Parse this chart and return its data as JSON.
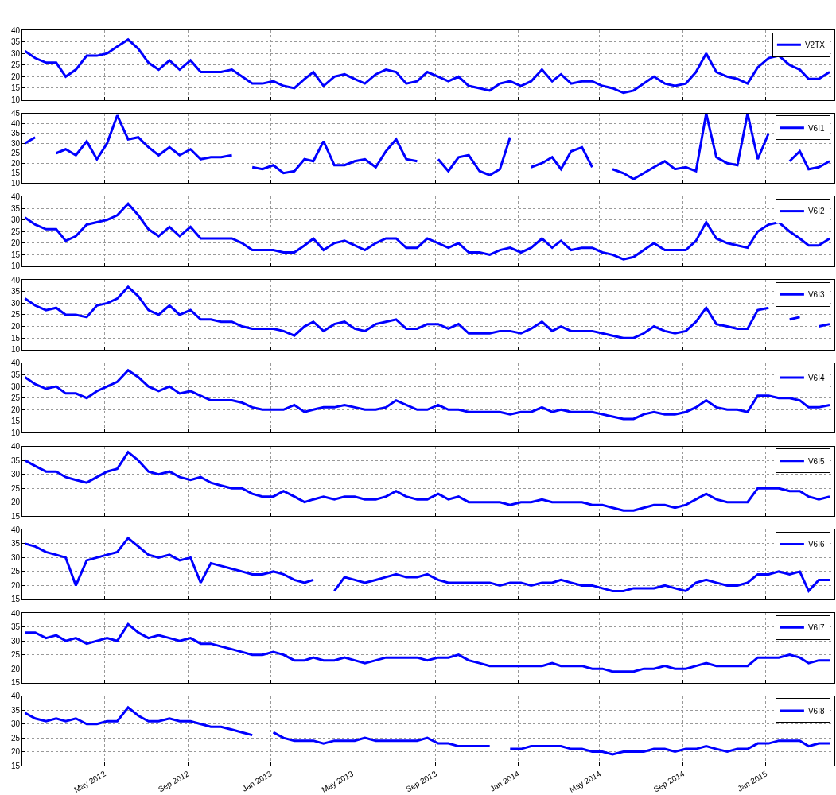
{
  "chart_data": [
    {
      "type": "line",
      "x": [
        "2012-01-05",
        "2012-01-20",
        "2012-02-05",
        "2012-02-20",
        "2012-03-05",
        "2012-03-20",
        "2012-04-05",
        "2012-04-20",
        "2012-05-05",
        "2012-05-20",
        "2012-06-05",
        "2012-06-20",
        "2012-07-05",
        "2012-07-20",
        "2012-08-05",
        "2012-08-20",
        "2012-09-05",
        "2012-09-20",
        "2012-10-05",
        "2012-10-20",
        "2012-11-05",
        "2012-11-20",
        "2012-12-05",
        "2012-12-20",
        "2013-01-05",
        "2013-01-20",
        "2013-02-05",
        "2013-02-20",
        "2013-03-05",
        "2013-03-20",
        "2013-04-05",
        "2013-04-20",
        "2013-05-05",
        "2013-05-20",
        "2013-06-05",
        "2013-06-20",
        "2013-07-05",
        "2013-07-20",
        "2013-08-05",
        "2013-08-20",
        "2013-09-05",
        "2013-09-20",
        "2013-10-05",
        "2013-10-20",
        "2013-11-05",
        "2013-11-20",
        "2013-12-05",
        "2013-12-20",
        "2014-01-05",
        "2014-01-20",
        "2014-02-05",
        "2014-02-20",
        "2014-03-05",
        "2014-03-20",
        "2014-04-05",
        "2014-04-20",
        "2014-05-05",
        "2014-05-20",
        "2014-06-05",
        "2014-06-20",
        "2014-07-05",
        "2014-07-20",
        "2014-08-05",
        "2014-08-20",
        "2014-09-05",
        "2014-09-20",
        "2014-10-05",
        "2014-10-20",
        "2014-11-05",
        "2014-11-20",
        "2014-12-05",
        "2014-12-20",
        "2015-01-05",
        "2015-01-20",
        "2015-02-05",
        "2015-02-20",
        "2015-03-05",
        "2015-03-20",
        "2015-04-05"
      ],
      "series": [
        {
          "name": "V2TX",
          "color": "#0000ff",
          "values": [
            31,
            28,
            26,
            26,
            20,
            23,
            29,
            29,
            30,
            33,
            36,
            32,
            26,
            23,
            27,
            23,
            27,
            22,
            22,
            22,
            23,
            20,
            17,
            17,
            18,
            16,
            15,
            19,
            22,
            16,
            20,
            21,
            19,
            17,
            21,
            23,
            22,
            17,
            18,
            22,
            20,
            18,
            20,
            16,
            15,
            14,
            17,
            18,
            16,
            18,
            23,
            18,
            21,
            17,
            18,
            18,
            16,
            15,
            13,
            14,
            17,
            20,
            17,
            16,
            17,
            22,
            30,
            22,
            20,
            19,
            17,
            24,
            28,
            29,
            25,
            23,
            19,
            19,
            22
          ]
        }
      ],
      "xlim": [
        "2012-01-01",
        "2015-04-12"
      ],
      "xticks": [
        {
          "value": "2012-05-01",
          "label": null
        },
        {
          "value": "2012-09-01",
          "label": null
        },
        {
          "value": "2013-01-01",
          "label": null
        },
        {
          "value": "2013-05-01",
          "label": null
        },
        {
          "value": "2013-09-01",
          "label": null
        },
        {
          "value": "2014-01-01",
          "label": null
        },
        {
          "value": "2014-05-01",
          "label": null
        },
        {
          "value": "2014-09-01",
          "label": null
        },
        {
          "value": "2015-01-01",
          "label": null
        }
      ],
      "ylim": [
        10,
        40
      ],
      "yticks": [
        10,
        15,
        20,
        25,
        30,
        35,
        40
      ],
      "grid": true,
      "legend": "top right",
      "tick_labels": "y",
      "line_style": "solid"
    },
    {
      "type": "line",
      "x": [
        "2012-01-05",
        "2012-01-20",
        "2012-02-05",
        "2012-02-20",
        "2012-03-05",
        "2012-03-20",
        "2012-04-05",
        "2012-04-20",
        "2012-05-05",
        "2012-05-20",
        "2012-06-05",
        "2012-06-20",
        "2012-07-05",
        "2012-07-20",
        "2012-08-05",
        "2012-08-20",
        "2012-09-05",
        "2012-09-20",
        "2012-10-05",
        "2012-10-20",
        "2012-11-05",
        "2012-11-20",
        "2012-12-05",
        "2012-12-20",
        "2013-01-05",
        "2013-01-20",
        "2013-02-05",
        "2013-02-20",
        "2013-03-05",
        "2013-03-20",
        "2013-04-05",
        "2013-04-20",
        "2013-05-05",
        "2013-05-20",
        "2013-06-05",
        "2013-06-20",
        "2013-07-05",
        "2013-07-20",
        "2013-08-05",
        "2013-08-20",
        "2013-09-05",
        "2013-09-20",
        "2013-10-05",
        "2013-10-20",
        "2013-11-05",
        "2013-11-20",
        "2013-12-05",
        "2013-12-20",
        "2014-01-05",
        "2014-01-20",
        "2014-02-05",
        "2014-02-20",
        "2014-03-05",
        "2014-03-20",
        "2014-04-05",
        "2014-04-20",
        "2014-05-05",
        "2014-05-20",
        "2014-06-05",
        "2014-06-20",
        "2014-07-05",
        "2014-07-20",
        "2014-08-05",
        "2014-08-20",
        "2014-09-05",
        "2014-09-20",
        "2014-10-05",
        "2014-10-20",
        "2014-11-05",
        "2014-11-20",
        "2014-12-05",
        "2014-12-20",
        "2015-01-05",
        "2015-01-20",
        "2015-02-05",
        "2015-02-20",
        "2015-03-05",
        "2015-03-20",
        "2015-04-05"
      ],
      "series": [
        {
          "name": "V6I1",
          "color": "#0000ff",
          "values": [
            30,
            33,
            null,
            25,
            27,
            24,
            31,
            22,
            30,
            44,
            32,
            33,
            28,
            24,
            28,
            24,
            27,
            22,
            23,
            23,
            24,
            null,
            18,
            17,
            19,
            15,
            16,
            22,
            21,
            31,
            19,
            19,
            21,
            22,
            18,
            26,
            32,
            22,
            21,
            null,
            22,
            16,
            23,
            24,
            16,
            14,
            17,
            33,
            null,
            18,
            20,
            23,
            17,
            26,
            28,
            18,
            null,
            17,
            15,
            12,
            15,
            18,
            21,
            17,
            18,
            16,
            45,
            23,
            20,
            19,
            45,
            22,
            35,
            null,
            21,
            26,
            17,
            18,
            21
          ]
        }
      ],
      "xlim": [
        "2012-01-01",
        "2015-04-12"
      ],
      "xticks": [
        {
          "value": "2012-05-01",
          "label": null
        },
        {
          "value": "2012-09-01",
          "label": null
        },
        {
          "value": "2013-01-01",
          "label": null
        },
        {
          "value": "2013-05-01",
          "label": null
        },
        {
          "value": "2013-09-01",
          "label": null
        },
        {
          "value": "2014-01-01",
          "label": null
        },
        {
          "value": "2014-05-01",
          "label": null
        },
        {
          "value": "2014-09-01",
          "label": null
        },
        {
          "value": "2015-01-01",
          "label": null
        }
      ],
      "ylim": [
        10,
        45
      ],
      "yticks": [
        10,
        15,
        20,
        25,
        30,
        35,
        40,
        45
      ],
      "grid": true,
      "legend": "top right",
      "tick_labels": "y",
      "line_style": "solid"
    },
    {
      "type": "line",
      "x": [
        "2012-01-05",
        "2012-01-20",
        "2012-02-05",
        "2012-02-20",
        "2012-03-05",
        "2012-03-20",
        "2012-04-05",
        "2012-04-20",
        "2012-05-05",
        "2012-05-20",
        "2012-06-05",
        "2012-06-20",
        "2012-07-05",
        "2012-07-20",
        "2012-08-05",
        "2012-08-20",
        "2012-09-05",
        "2012-09-20",
        "2012-10-05",
        "2012-10-20",
        "2012-11-05",
        "2012-11-20",
        "2012-12-05",
        "2012-12-20",
        "2013-01-05",
        "2013-01-20",
        "2013-02-05",
        "2013-02-20",
        "2013-03-05",
        "2013-03-20",
        "2013-04-05",
        "2013-04-20",
        "2013-05-05",
        "2013-05-20",
        "2013-06-05",
        "2013-06-20",
        "2013-07-05",
        "2013-07-20",
        "2013-08-05",
        "2013-08-20",
        "2013-09-05",
        "2013-09-20",
        "2013-10-05",
        "2013-10-20",
        "2013-11-05",
        "2013-11-20",
        "2013-12-05",
        "2013-12-20",
        "2014-01-05",
        "2014-01-20",
        "2014-02-05",
        "2014-02-20",
        "2014-03-05",
        "2014-03-20",
        "2014-04-05",
        "2014-04-20",
        "2014-05-05",
        "2014-05-20",
        "2014-06-05",
        "2014-06-20",
        "2014-07-05",
        "2014-07-20",
        "2014-08-05",
        "2014-08-20",
        "2014-09-05",
        "2014-09-20",
        "2014-10-05",
        "2014-10-20",
        "2014-11-05",
        "2014-11-20",
        "2014-12-05",
        "2014-12-20",
        "2015-01-05",
        "2015-01-20",
        "2015-02-05",
        "2015-02-20",
        "2015-03-05",
        "2015-03-20",
        "2015-04-05"
      ],
      "series": [
        {
          "name": "V6I2",
          "color": "#0000ff",
          "values": [
            31,
            28,
            26,
            26,
            21,
            23,
            28,
            29,
            30,
            32,
            37,
            32,
            26,
            23,
            27,
            23,
            27,
            22,
            22,
            22,
            22,
            20,
            17,
            17,
            17,
            16,
            16,
            19,
            22,
            17,
            20,
            21,
            19,
            17,
            20,
            22,
            22,
            18,
            18,
            22,
            20,
            18,
            20,
            16,
            16,
            15,
            17,
            18,
            16,
            18,
            22,
            18,
            21,
            17,
            18,
            18,
            16,
            15,
            13,
            14,
            17,
            20,
            17,
            17,
            17,
            21,
            29,
            22,
            20,
            19,
            18,
            25,
            28,
            29,
            25,
            22,
            19,
            19,
            22
          ]
        }
      ],
      "xlim": [
        "2012-01-01",
        "2015-04-12"
      ],
      "xticks": [
        {
          "value": "2012-05-01",
          "label": null
        },
        {
          "value": "2012-09-01",
          "label": null
        },
        {
          "value": "2013-01-01",
          "label": null
        },
        {
          "value": "2013-05-01",
          "label": null
        },
        {
          "value": "2013-09-01",
          "label": null
        },
        {
          "value": "2014-01-01",
          "label": null
        },
        {
          "value": "2014-05-01",
          "label": null
        },
        {
          "value": "2014-09-01",
          "label": null
        },
        {
          "value": "2015-01-01",
          "label": null
        }
      ],
      "ylim": [
        10,
        40
      ],
      "yticks": [
        10,
        15,
        20,
        25,
        30,
        35,
        40
      ],
      "grid": true,
      "legend": "top right",
      "tick_labels": "y",
      "line_style": "solid"
    },
    {
      "type": "line",
      "x": [
        "2012-01-05",
        "2012-01-20",
        "2012-02-05",
        "2012-02-20",
        "2012-03-05",
        "2012-03-20",
        "2012-04-05",
        "2012-04-20",
        "2012-05-05",
        "2012-05-20",
        "2012-06-05",
        "2012-06-20",
        "2012-07-05",
        "2012-07-20",
        "2012-08-05",
        "2012-08-20",
        "2012-09-05",
        "2012-09-20",
        "2012-10-05",
        "2012-10-20",
        "2012-11-05",
        "2012-11-20",
        "2012-12-05",
        "2012-12-20",
        "2013-01-05",
        "2013-01-20",
        "2013-02-05",
        "2013-02-20",
        "2013-03-05",
        "2013-03-20",
        "2013-04-05",
        "2013-04-20",
        "2013-05-05",
        "2013-05-20",
        "2013-06-05",
        "2013-06-20",
        "2013-07-05",
        "2013-07-20",
        "2013-08-05",
        "2013-08-20",
        "2013-09-05",
        "2013-09-20",
        "2013-10-05",
        "2013-10-20",
        "2013-11-05",
        "2013-11-20",
        "2013-12-05",
        "2013-12-20",
        "2014-01-05",
        "2014-01-20",
        "2014-02-05",
        "2014-02-20",
        "2014-03-05",
        "2014-03-20",
        "2014-04-05",
        "2014-04-20",
        "2014-05-05",
        "2014-05-20",
        "2014-06-05",
        "2014-06-20",
        "2014-07-05",
        "2014-07-20",
        "2014-08-05",
        "2014-08-20",
        "2014-09-05",
        "2014-09-20",
        "2014-10-05",
        "2014-10-20",
        "2014-11-05",
        "2014-11-20",
        "2014-12-05",
        "2014-12-20",
        "2015-01-05",
        "2015-01-20",
        "2015-02-05",
        "2015-02-20",
        "2015-03-05",
        "2015-03-20",
        "2015-04-05"
      ],
      "series": [
        {
          "name": "V6I3",
          "color": "#0000ff",
          "values": [
            32,
            29,
            27,
            28,
            25,
            25,
            24,
            29,
            30,
            32,
            37,
            33,
            27,
            25,
            29,
            25,
            27,
            23,
            23,
            22,
            22,
            20,
            19,
            19,
            19,
            18,
            16,
            20,
            22,
            18,
            21,
            22,
            19,
            18,
            21,
            22,
            23,
            19,
            19,
            21,
            21,
            19,
            21,
            17,
            17,
            17,
            18,
            18,
            17,
            19,
            22,
            18,
            20,
            18,
            18,
            18,
            17,
            16,
            15,
            15,
            17,
            20,
            18,
            17,
            18,
            22,
            28,
            21,
            20,
            19,
            19,
            27,
            28,
            null,
            23,
            24,
            null,
            20,
            21
          ]
        }
      ],
      "xlim": [
        "2012-01-01",
        "2015-04-12"
      ],
      "xticks": [
        {
          "value": "2012-05-01",
          "label": null
        },
        {
          "value": "2012-09-01",
          "label": null
        },
        {
          "value": "2013-01-01",
          "label": null
        },
        {
          "value": "2013-05-01",
          "label": null
        },
        {
          "value": "2013-09-01",
          "label": null
        },
        {
          "value": "2014-01-01",
          "label": null
        },
        {
          "value": "2014-05-01",
          "label": null
        },
        {
          "value": "2014-09-01",
          "label": null
        },
        {
          "value": "2015-01-01",
          "label": null
        }
      ],
      "ylim": [
        10,
        40
      ],
      "yticks": [
        10,
        15,
        20,
        25,
        30,
        35,
        40
      ],
      "grid": true,
      "legend": "top right",
      "tick_labels": "y",
      "line_style": "solid"
    },
    {
      "type": "line",
      "x": [
        "2012-01-05",
        "2012-01-20",
        "2012-02-05",
        "2012-02-20",
        "2012-03-05",
        "2012-03-20",
        "2012-04-05",
        "2012-04-20",
        "2012-05-05",
        "2012-05-20",
        "2012-06-05",
        "2012-06-20",
        "2012-07-05",
        "2012-07-20",
        "2012-08-05",
        "2012-08-20",
        "2012-09-05",
        "2012-09-20",
        "2012-10-05",
        "2012-10-20",
        "2012-11-05",
        "2012-11-20",
        "2012-12-05",
        "2012-12-20",
        "2013-01-05",
        "2013-01-20",
        "2013-02-05",
        "2013-02-20",
        "2013-03-05",
        "2013-03-20",
        "2013-04-05",
        "2013-04-20",
        "2013-05-05",
        "2013-05-20",
        "2013-06-05",
        "2013-06-20",
        "2013-07-05",
        "2013-07-20",
        "2013-08-05",
        "2013-08-20",
        "2013-09-05",
        "2013-09-20",
        "2013-10-05",
        "2013-10-20",
        "2013-11-05",
        "2013-11-20",
        "2013-12-05",
        "2013-12-20",
        "2014-01-05",
        "2014-01-20",
        "2014-02-05",
        "2014-02-20",
        "2014-03-05",
        "2014-03-20",
        "2014-04-05",
        "2014-04-20",
        "2014-05-05",
        "2014-05-20",
        "2014-06-05",
        "2014-06-20",
        "2014-07-05",
        "2014-07-20",
        "2014-08-05",
        "2014-08-20",
        "2014-09-05",
        "2014-09-20",
        "2014-10-05",
        "2014-10-20",
        "2014-11-05",
        "2014-11-20",
        "2014-12-05",
        "2014-12-20",
        "2015-01-05",
        "2015-01-20",
        "2015-02-05",
        "2015-02-20",
        "2015-03-05",
        "2015-03-20",
        "2015-04-05"
      ],
      "series": [
        {
          "name": "V6I4",
          "color": "#0000ff",
          "values": [
            34,
            31,
            29,
            30,
            27,
            27,
            25,
            28,
            30,
            32,
            37,
            34,
            30,
            28,
            30,
            27,
            28,
            26,
            24,
            24,
            24,
            23,
            21,
            20,
            20,
            20,
            22,
            19,
            20,
            21,
            21,
            22,
            21,
            20,
            20,
            21,
            24,
            22,
            20,
            20,
            22,
            20,
            20,
            19,
            19,
            19,
            19,
            18,
            19,
            19,
            21,
            19,
            20,
            19,
            19,
            19,
            18,
            17,
            16,
            16,
            18,
            19,
            18,
            18,
            19,
            21,
            24,
            21,
            20,
            20,
            19,
            26,
            26,
            25,
            25,
            24,
            21,
            21,
            22
          ]
        }
      ],
      "xlim": [
        "2012-01-01",
        "2015-04-12"
      ],
      "xticks": [
        {
          "value": "2012-05-01",
          "label": null
        },
        {
          "value": "2012-09-01",
          "label": null
        },
        {
          "value": "2013-01-01",
          "label": null
        },
        {
          "value": "2013-05-01",
          "label": null
        },
        {
          "value": "2013-09-01",
          "label": null
        },
        {
          "value": "2014-01-01",
          "label": null
        },
        {
          "value": "2014-05-01",
          "label": null
        },
        {
          "value": "2014-09-01",
          "label": null
        },
        {
          "value": "2015-01-01",
          "label": null
        }
      ],
      "ylim": [
        10,
        40
      ],
      "yticks": [
        10,
        15,
        20,
        25,
        30,
        35,
        40
      ],
      "grid": true,
      "legend": "top right",
      "tick_labels": "y",
      "line_style": "solid"
    },
    {
      "type": "line",
      "x": [
        "2012-01-05",
        "2012-01-20",
        "2012-02-05",
        "2012-02-20",
        "2012-03-05",
        "2012-03-20",
        "2012-04-05",
        "2012-04-20",
        "2012-05-05",
        "2012-05-20",
        "2012-06-05",
        "2012-06-20",
        "2012-07-05",
        "2012-07-20",
        "2012-08-05",
        "2012-08-20",
        "2012-09-05",
        "2012-09-20",
        "2012-10-05",
        "2012-10-20",
        "2012-11-05",
        "2012-11-20",
        "2012-12-05",
        "2012-12-20",
        "2013-01-05",
        "2013-01-20",
        "2013-02-05",
        "2013-02-20",
        "2013-03-05",
        "2013-03-20",
        "2013-04-05",
        "2013-04-20",
        "2013-05-05",
        "2013-05-20",
        "2013-06-05",
        "2013-06-20",
        "2013-07-05",
        "2013-07-20",
        "2013-08-05",
        "2013-08-20",
        "2013-09-05",
        "2013-09-20",
        "2013-10-05",
        "2013-10-20",
        "2013-11-05",
        "2013-11-20",
        "2013-12-05",
        "2013-12-20",
        "2014-01-05",
        "2014-01-20",
        "2014-02-05",
        "2014-02-20",
        "2014-03-05",
        "2014-03-20",
        "2014-04-05",
        "2014-04-20",
        "2014-05-05",
        "2014-05-20",
        "2014-06-05",
        "2014-06-20",
        "2014-07-05",
        "2014-07-20",
        "2014-08-05",
        "2014-08-20",
        "2014-09-05",
        "2014-09-20",
        "2014-10-05",
        "2014-10-20",
        "2014-11-05",
        "2014-11-20",
        "2014-12-05",
        "2014-12-20",
        "2015-01-05",
        "2015-01-20",
        "2015-02-05",
        "2015-02-20",
        "2015-03-05",
        "2015-03-20",
        "2015-04-05"
      ],
      "series": [
        {
          "name": "V6I5",
          "color": "#0000ff",
          "values": [
            35,
            33,
            31,
            31,
            29,
            28,
            27,
            29,
            31,
            32,
            38,
            35,
            31,
            30,
            31,
            29,
            28,
            29,
            27,
            26,
            25,
            25,
            23,
            22,
            22,
            24,
            22,
            20,
            21,
            22,
            21,
            22,
            22,
            21,
            21,
            22,
            24,
            22,
            21,
            21,
            23,
            21,
            22,
            20,
            20,
            20,
            20,
            19,
            20,
            20,
            21,
            20,
            20,
            20,
            20,
            19,
            19,
            18,
            17,
            17,
            18,
            19,
            19,
            18,
            19,
            21,
            23,
            21,
            20,
            20,
            20,
            25,
            25,
            25,
            24,
            24,
            22,
            21,
            22
          ]
        }
      ],
      "xlim": [
        "2012-01-01",
        "2015-04-12"
      ],
      "xticks": [
        {
          "value": "2012-05-01",
          "label": null
        },
        {
          "value": "2012-09-01",
          "label": null
        },
        {
          "value": "2013-01-01",
          "label": null
        },
        {
          "value": "2013-05-01",
          "label": null
        },
        {
          "value": "2013-09-01",
          "label": null
        },
        {
          "value": "2014-01-01",
          "label": null
        },
        {
          "value": "2014-05-01",
          "label": null
        },
        {
          "value": "2014-09-01",
          "label": null
        },
        {
          "value": "2015-01-01",
          "label": null
        }
      ],
      "ylim": [
        15,
        40
      ],
      "yticks": [
        15,
        20,
        25,
        30,
        35,
        40
      ],
      "grid": true,
      "legend": "top right",
      "tick_labels": "y",
      "line_style": "solid"
    },
    {
      "type": "line",
      "x": [
        "2012-01-05",
        "2012-01-20",
        "2012-02-05",
        "2012-02-20",
        "2012-03-05",
        "2012-03-20",
        "2012-04-05",
        "2012-04-20",
        "2012-05-05",
        "2012-05-20",
        "2012-06-05",
        "2012-06-20",
        "2012-07-05",
        "2012-07-20",
        "2012-08-05",
        "2012-08-20",
        "2012-09-05",
        "2012-09-20",
        "2012-10-05",
        "2012-10-20",
        "2012-11-05",
        "2012-11-20",
        "2012-12-05",
        "2012-12-20",
        "2013-01-05",
        "2013-01-20",
        "2013-02-05",
        "2013-02-20",
        "2013-03-05",
        "2013-03-20",
        "2013-04-05",
        "2013-04-20",
        "2013-05-05",
        "2013-05-20",
        "2013-06-05",
        "2013-06-20",
        "2013-07-05",
        "2013-07-20",
        "2013-08-05",
        "2013-08-20",
        "2013-09-05",
        "2013-09-20",
        "2013-10-05",
        "2013-10-20",
        "2013-11-05",
        "2013-11-20",
        "2013-12-05",
        "2013-12-20",
        "2014-01-05",
        "2014-01-20",
        "2014-02-05",
        "2014-02-20",
        "2014-03-05",
        "2014-03-20",
        "2014-04-05",
        "2014-04-20",
        "2014-05-05",
        "2014-05-20",
        "2014-06-05",
        "2014-06-20",
        "2014-07-05",
        "2014-07-20",
        "2014-08-05",
        "2014-08-20",
        "2014-09-05",
        "2014-09-20",
        "2014-10-05",
        "2014-10-20",
        "2014-11-05",
        "2014-11-20",
        "2014-12-05",
        "2014-12-20",
        "2015-01-05",
        "2015-01-20",
        "2015-02-05",
        "2015-02-20",
        "2015-03-05",
        "2015-03-20",
        "2015-04-05"
      ],
      "series": [
        {
          "name": "V6I6",
          "color": "#0000ff",
          "values": [
            35,
            34,
            32,
            31,
            30,
            20,
            29,
            30,
            31,
            32,
            37,
            34,
            31,
            30,
            31,
            29,
            30,
            21,
            28,
            27,
            26,
            25,
            24,
            24,
            25,
            24,
            22,
            21,
            22,
            null,
            18,
            23,
            22,
            21,
            22,
            23,
            24,
            23,
            23,
            24,
            22,
            21,
            21,
            21,
            21,
            21,
            20,
            21,
            21,
            20,
            21,
            21,
            22,
            21,
            20,
            20,
            19,
            18,
            18,
            19,
            19,
            19,
            20,
            19,
            18,
            21,
            22,
            21,
            20,
            20,
            21,
            24,
            24,
            25,
            24,
            25,
            18,
            22,
            22
          ]
        }
      ],
      "xlim": [
        "2012-01-01",
        "2015-04-12"
      ],
      "xticks": [
        {
          "value": "2012-05-01",
          "label": null
        },
        {
          "value": "2012-09-01",
          "label": null
        },
        {
          "value": "2013-01-01",
          "label": null
        },
        {
          "value": "2013-05-01",
          "label": null
        },
        {
          "value": "2013-09-01",
          "label": null
        },
        {
          "value": "2014-01-01",
          "label": null
        },
        {
          "value": "2014-05-01",
          "label": null
        },
        {
          "value": "2014-09-01",
          "label": null
        },
        {
          "value": "2015-01-01",
          "label": null
        }
      ],
      "ylim": [
        15,
        40
      ],
      "yticks": [
        15,
        20,
        25,
        30,
        35,
        40
      ],
      "grid": true,
      "legend": "top right",
      "tick_labels": "y",
      "line_style": "solid"
    },
    {
      "type": "line",
      "x": [
        "2012-01-05",
        "2012-01-20",
        "2012-02-05",
        "2012-02-20",
        "2012-03-05",
        "2012-03-20",
        "2012-04-05",
        "2012-04-20",
        "2012-05-05",
        "2012-05-20",
        "2012-06-05",
        "2012-06-20",
        "2012-07-05",
        "2012-07-20",
        "2012-08-05",
        "2012-08-20",
        "2012-09-05",
        "2012-09-20",
        "2012-10-05",
        "2012-10-20",
        "2012-11-05",
        "2012-11-20",
        "2012-12-05",
        "2012-12-20",
        "2013-01-05",
        "2013-01-20",
        "2013-02-05",
        "2013-02-20",
        "2013-03-05",
        "2013-03-20",
        "2013-04-05",
        "2013-04-20",
        "2013-05-05",
        "2013-05-20",
        "2013-06-05",
        "2013-06-20",
        "2013-07-05",
        "2013-07-20",
        "2013-08-05",
        "2013-08-20",
        "2013-09-05",
        "2013-09-20",
        "2013-10-05",
        "2013-10-20",
        "2013-11-05",
        "2013-11-20",
        "2013-12-05",
        "2013-12-20",
        "2014-01-05",
        "2014-01-20",
        "2014-02-05",
        "2014-02-20",
        "2014-03-05",
        "2014-03-20",
        "2014-04-05",
        "2014-04-20",
        "2014-05-05",
        "2014-05-20",
        "2014-06-05",
        "2014-06-20",
        "2014-07-05",
        "2014-07-20",
        "2014-08-05",
        "2014-08-20",
        "2014-09-05",
        "2014-09-20",
        "2014-10-05",
        "2014-10-20",
        "2014-11-05",
        "2014-11-20",
        "2014-12-05",
        "2014-12-20",
        "2015-01-05",
        "2015-01-20",
        "2015-02-05",
        "2015-02-20",
        "2015-03-05",
        "2015-03-20",
        "2015-04-05"
      ],
      "series": [
        {
          "name": "V6I7",
          "color": "#0000ff",
          "values": [
            33,
            33,
            31,
            32,
            30,
            31,
            29,
            30,
            31,
            30,
            36,
            33,
            31,
            32,
            31,
            30,
            31,
            29,
            29,
            28,
            27,
            26,
            25,
            25,
            26,
            25,
            23,
            23,
            24,
            23,
            23,
            24,
            23,
            22,
            23,
            24,
            24,
            24,
            24,
            23,
            24,
            24,
            25,
            23,
            22,
            21,
            21,
            21,
            21,
            21,
            21,
            22,
            21,
            21,
            21,
            20,
            20,
            19,
            19,
            19,
            20,
            20,
            21,
            20,
            20,
            21,
            22,
            21,
            21,
            21,
            21,
            24,
            24,
            24,
            25,
            24,
            22,
            23,
            23
          ]
        }
      ],
      "xlim": [
        "2012-01-01",
        "2015-04-12"
      ],
      "xticks": [
        {
          "value": "2012-05-01",
          "label": null
        },
        {
          "value": "2012-09-01",
          "label": null
        },
        {
          "value": "2013-01-01",
          "label": null
        },
        {
          "value": "2013-05-01",
          "label": null
        },
        {
          "value": "2013-09-01",
          "label": null
        },
        {
          "value": "2014-01-01",
          "label": null
        },
        {
          "value": "2014-05-01",
          "label": null
        },
        {
          "value": "2014-09-01",
          "label": null
        },
        {
          "value": "2015-01-01",
          "label": null
        }
      ],
      "ylim": [
        15,
        40
      ],
      "yticks": [
        15,
        20,
        25,
        30,
        35,
        40
      ],
      "grid": true,
      "legend": "top right",
      "tick_labels": "y",
      "line_style": "solid"
    },
    {
      "type": "line",
      "x": [
        "2012-01-05",
        "2012-01-20",
        "2012-02-05",
        "2012-02-20",
        "2012-03-05",
        "2012-03-20",
        "2012-04-05",
        "2012-04-20",
        "2012-05-05",
        "2012-05-20",
        "2012-06-05",
        "2012-06-20",
        "2012-07-05",
        "2012-07-20",
        "2012-08-05",
        "2012-08-20",
        "2012-09-05",
        "2012-09-20",
        "2012-10-05",
        "2012-10-20",
        "2012-11-05",
        "2012-11-20",
        "2012-12-05",
        "2012-12-20",
        "2013-01-05",
        "2013-01-20",
        "2013-02-05",
        "2013-02-20",
        "2013-03-05",
        "2013-03-20",
        "2013-04-05",
        "2013-04-20",
        "2013-05-05",
        "2013-05-20",
        "2013-06-05",
        "2013-06-20",
        "2013-07-05",
        "2013-07-20",
        "2013-08-05",
        "2013-08-20",
        "2013-09-05",
        "2013-09-20",
        "2013-10-05",
        "2013-10-20",
        "2013-11-05",
        "2013-11-20",
        "2013-12-05",
        "2013-12-20",
        "2014-01-05",
        "2014-01-20",
        "2014-02-05",
        "2014-02-20",
        "2014-03-05",
        "2014-03-20",
        "2014-04-05",
        "2014-04-20",
        "2014-05-05",
        "2014-05-20",
        "2014-06-05",
        "2014-06-20",
        "2014-07-05",
        "2014-07-20",
        "2014-08-05",
        "2014-08-20",
        "2014-09-05",
        "2014-09-20",
        "2014-10-05",
        "2014-10-20",
        "2014-11-05",
        "2014-11-20",
        "2014-12-05",
        "2014-12-20",
        "2015-01-05",
        "2015-01-20",
        "2015-02-05",
        "2015-02-20",
        "2015-03-05",
        "2015-03-20",
        "2015-04-05"
      ],
      "series": [
        {
          "name": "V6I8",
          "color": "#0000ff",
          "values": [
            34,
            32,
            31,
            32,
            31,
            32,
            30,
            30,
            31,
            31,
            36,
            33,
            31,
            31,
            32,
            31,
            31,
            30,
            29,
            29,
            28,
            27,
            26,
            null,
            27,
            25,
            24,
            24,
            24,
            23,
            24,
            24,
            24,
            25,
            24,
            24,
            24,
            24,
            24,
            25,
            23,
            23,
            22,
            22,
            22,
            22,
            null,
            21,
            21,
            22,
            22,
            22,
            22,
            21,
            21,
            20,
            20,
            19,
            20,
            20,
            20,
            21,
            21,
            20,
            21,
            21,
            22,
            21,
            20,
            21,
            21,
            23,
            23,
            24,
            24,
            24,
            22,
            23,
            23
          ]
        }
      ],
      "xlim": [
        "2012-01-01",
        "2015-04-12"
      ],
      "xticks": [
        {
          "value": "2012-05-01",
          "label": "May 2012"
        },
        {
          "value": "2012-09-01",
          "label": "Sep 2012"
        },
        {
          "value": "2013-01-01",
          "label": "Jan 2013"
        },
        {
          "value": "2013-05-01",
          "label": "May 2013"
        },
        {
          "value": "2013-09-01",
          "label": "Sep 2013"
        },
        {
          "value": "2014-01-01",
          "label": "Jan 2014"
        },
        {
          "value": "2014-05-01",
          "label": "May 2014"
        },
        {
          "value": "2014-09-01",
          "label": "Sep 2014"
        },
        {
          "value": "2015-01-01",
          "label": "Jan 2015"
        }
      ],
      "ylim": [
        15,
        40
      ],
      "yticks": [
        15,
        20,
        25,
        30,
        35,
        40
      ],
      "grid": true,
      "legend": "top right",
      "line_style": "solid"
    }
  ]
}
